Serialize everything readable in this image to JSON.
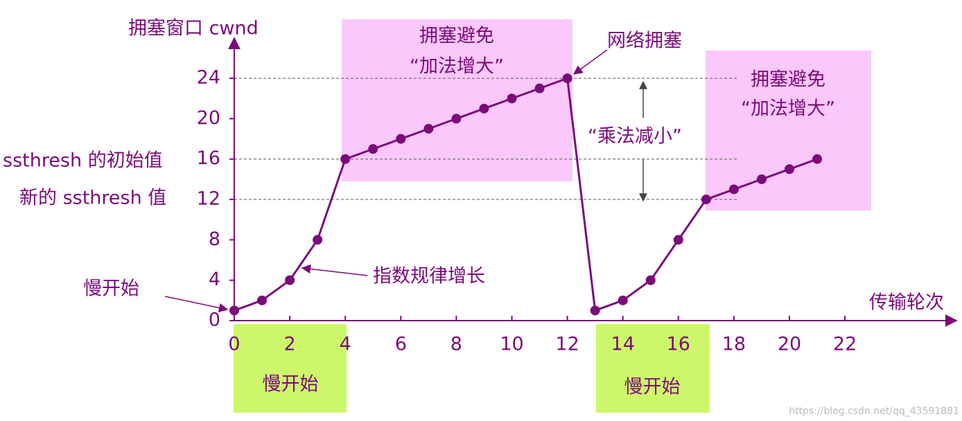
{
  "chart_data": {
    "type": "line",
    "ylabel": "拥塞窗口 cwnd",
    "xlabel": "传输轮次",
    "x": [
      0,
      1,
      2,
      3,
      4,
      5,
      6,
      7,
      8,
      9,
      10,
      11,
      12,
      13,
      14,
      15,
      16,
      17,
      18,
      19,
      20,
      21
    ],
    "series": [
      {
        "color": "#7b0a7b",
        "values": [
          1,
          2,
          4,
          8,
          16,
          17,
          18,
          19,
          20,
          21,
          22,
          23,
          24,
          1,
          2,
          4,
          8,
          12,
          13,
          14,
          15,
          16
        ]
      }
    ],
    "xlim": [
      0,
      26
    ],
    "ylim": [
      0,
      28
    ],
    "xticks": [
      0,
      2,
      4,
      6,
      8,
      10,
      12,
      14,
      16,
      18,
      20,
      22
    ],
    "yticks": [
      0,
      4,
      8,
      12,
      16,
      20,
      24
    ],
    "reference_lines": [
      24,
      16,
      12
    ],
    "annotations": [
      "拥塞避免",
      "“加法增大”",
      "拥塞避免",
      "“加法增大”",
      "网络拥塞",
      "“乘法减小”",
      "ssthresh 的初始值",
      "新的 ssthresh 值",
      "慢开始",
      "指数规律增长",
      "慢开始",
      "慢开始"
    ],
    "watermark": "https://blog.csdn.net/qq_43591881"
  }
}
